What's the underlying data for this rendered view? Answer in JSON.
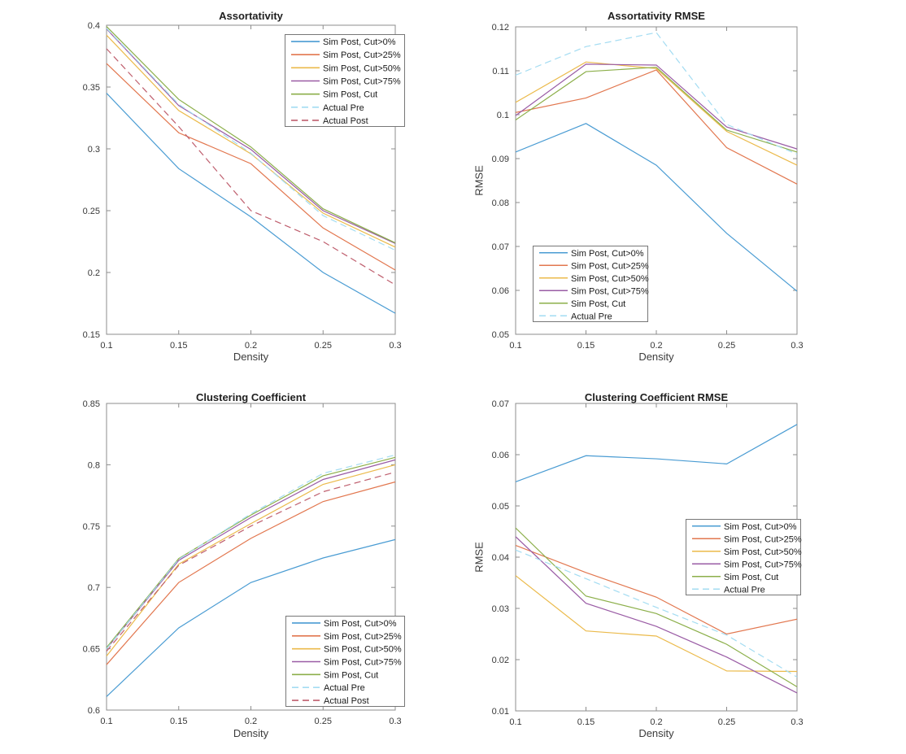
{
  "page": {
    "background": "#ffffff"
  },
  "palette": {
    "blue": "#4A9CD3",
    "orange": "#E2774F",
    "yellow": "#EBBA4B",
    "purple": "#9A5CA5",
    "green": "#8CAF4A",
    "lightblue": "#A3DCF2",
    "maroon": "#BF5F6E",
    "axis": "#8C8C8C",
    "tick_text": "#383838",
    "legend_border": "#777777"
  },
  "chart_data": [
    {
      "type": "line",
      "name": "assortativity",
      "title": "Assortativity",
      "xlabel": "Density",
      "ylabel": "",
      "x": [
        0.1,
        0.15,
        0.2,
        0.25,
        0.3
      ],
      "xlim": [
        0.1,
        0.3
      ],
      "ylim": [
        0.15,
        0.4
      ],
      "grid": false,
      "xticks": {
        "values": [
          0.1,
          0.15,
          0.2,
          0.25,
          0.3
        ],
        "labels": [
          "0.1",
          "0.15",
          "0.2",
          "0.25",
          "0.3"
        ]
      },
      "yticks": {
        "values": [
          0.15,
          0.2,
          0.25,
          0.3,
          0.35,
          0.4
        ],
        "labels": [
          "0.15",
          "0.2",
          "0.25",
          "0.3",
          "0.35",
          "0.4"
        ]
      },
      "legend": {
        "location": "northeast-inside",
        "position": [
          350,
          42
        ],
        "size": [
          147,
          113
        ]
      },
      "series": [
        {
          "key": "cut0",
          "name": "Sim Post, Cut>0%",
          "color_key": "blue",
          "dash": false,
          "values": [
            0.345,
            0.284,
            0.245,
            0.2,
            0.167
          ]
        },
        {
          "key": "cut25",
          "name": "Sim Post, Cut>25%",
          "color_key": "orange",
          "dash": false,
          "values": [
            0.369,
            0.313,
            0.288,
            0.236,
            0.202
          ]
        },
        {
          "key": "cut50",
          "name": "Sim Post, Cut>50%",
          "color_key": "yellow",
          "dash": false,
          "values": [
            0.392,
            0.331,
            0.296,
            0.248,
            0.2205
          ]
        },
        {
          "key": "cut75",
          "name": "Sim Post, Cut>75%",
          "color_key": "purple",
          "dash": false,
          "values": [
            0.397,
            0.335,
            0.2995,
            0.25,
            0.2235
          ]
        },
        {
          "key": "cut",
          "name": "Sim Post, Cut",
          "color_key": "green",
          "dash": false,
          "values": [
            0.399,
            0.34,
            0.3015,
            0.2515,
            0.224
          ]
        },
        {
          "key": "pre",
          "name": "Actual Pre",
          "color_key": "lightblue",
          "dash": true,
          "values": [
            0.3975,
            0.336,
            0.2965,
            0.246,
            0.218
          ]
        },
        {
          "key": "post",
          "name": "Actual Post",
          "color_key": "maroon",
          "dash": true,
          "values": [
            0.381,
            0.318,
            0.25,
            0.225,
            0.19
          ]
        }
      ]
    },
    {
      "type": "line",
      "name": "assortativity-rmse",
      "title": "Assortativity RMSE",
      "xlabel": "Density",
      "ylabel": "RMSE",
      "x": [
        0.1,
        0.15,
        0.2,
        0.25,
        0.3
      ],
      "xlim": [
        0.1,
        0.3
      ],
      "ylim": [
        0.05,
        0.12
      ],
      "grid": false,
      "xticks": {
        "values": [
          0.1,
          0.15,
          0.2,
          0.25,
          0.3
        ],
        "labels": [
          "0.1",
          "0.15",
          "0.2",
          "0.25",
          "0.3"
        ]
      },
      "yticks": {
        "values": [
          0.05,
          0.06,
          0.07,
          0.08,
          0.09,
          0.1,
          0.11,
          0.12
        ],
        "labels": [
          "0.05",
          "0.06",
          "0.07",
          "0.08",
          "0.09",
          "0.1",
          "0.11",
          "0.12"
        ]
      },
      "legend": {
        "location": "southwest-inside",
        "position": [
          98,
          302
        ],
        "size": [
          141,
          93
        ]
      },
      "series": [
        {
          "key": "cut0",
          "name": "Sim Post, Cut>0%",
          "color_key": "blue",
          "dash": false,
          "values": [
            0.0915,
            0.098,
            0.0885,
            0.073,
            0.0598
          ]
        },
        {
          "key": "cut25",
          "name": "Sim Post, Cut>25%",
          "color_key": "orange",
          "dash": false,
          "values": [
            0.1005,
            0.1038,
            0.1102,
            0.0925,
            0.0842
          ]
        },
        {
          "key": "cut50",
          "name": "Sim Post, Cut>50%",
          "color_key": "yellow",
          "dash": false,
          "values": [
            0.1028,
            0.112,
            0.1105,
            0.0962,
            0.0885
          ]
        },
        {
          "key": "cut75",
          "name": "Sim Post, Cut>75%",
          "color_key": "purple",
          "dash": false,
          "values": [
            0.0998,
            0.1115,
            0.1113,
            0.0972,
            0.0922
          ]
        },
        {
          "key": "cut",
          "name": "Sim Post, Cut",
          "color_key": "green",
          "dash": false,
          "values": [
            0.0988,
            0.1098,
            0.1108,
            0.0965,
            0.0915
          ]
        },
        {
          "key": "pre",
          "name": "Actual Pre",
          "color_key": "lightblue",
          "dash": true,
          "values": [
            0.109,
            0.1155,
            0.1187,
            0.0978,
            0.091
          ]
        }
      ]
    },
    {
      "type": "line",
      "name": "clustering-coefficient",
      "title": "Clustering Coefficient",
      "xlabel": "Density",
      "ylabel": "",
      "x": [
        0.1,
        0.15,
        0.2,
        0.25,
        0.3
      ],
      "xlim": [
        0.1,
        0.3
      ],
      "ylim": [
        0.6,
        0.85
      ],
      "grid": false,
      "xticks": {
        "values": [
          0.1,
          0.15,
          0.2,
          0.25,
          0.3
        ],
        "labels": [
          "0.1",
          "0.15",
          "0.2",
          "0.25",
          "0.3"
        ]
      },
      "yticks": {
        "values": [
          0.6,
          0.65,
          0.7,
          0.75,
          0.8,
          0.85
        ],
        "labels": [
          "0.6",
          "0.65",
          "0.7",
          "0.75",
          "0.8",
          "0.85"
        ]
      },
      "legend": {
        "location": "southeast-inside",
        "position": [
          351,
          294
        ],
        "size": [
          146,
          111
        ]
      },
      "series": [
        {
          "key": "cut0",
          "name": "Sim Post, Cut>0%",
          "color_key": "blue",
          "dash": false,
          "values": [
            0.611,
            0.667,
            0.704,
            0.724,
            0.739
          ]
        },
        {
          "key": "cut25",
          "name": "Sim Post, Cut>25%",
          "color_key": "orange",
          "dash": false,
          "values": [
            0.637,
            0.704,
            0.74,
            0.77,
            0.786
          ]
        },
        {
          "key": "cut50",
          "name": "Sim Post, Cut>50%",
          "color_key": "yellow",
          "dash": false,
          "values": [
            0.644,
            0.719,
            0.752,
            0.784,
            0.8
          ]
        },
        {
          "key": "cut75",
          "name": "Sim Post, Cut>75%",
          "color_key": "purple",
          "dash": false,
          "values": [
            0.65,
            0.722,
            0.757,
            0.788,
            0.804
          ]
        },
        {
          "key": "cut",
          "name": "Sim Post, Cut",
          "color_key": "green",
          "dash": false,
          "values": [
            0.651,
            0.7235,
            0.759,
            0.791,
            0.806
          ]
        },
        {
          "key": "pre",
          "name": "Actual Pre",
          "color_key": "lightblue",
          "dash": true,
          "values": [
            0.65,
            0.723,
            0.76,
            0.793,
            0.808
          ]
        },
        {
          "key": "post",
          "name": "Actual Post",
          "color_key": "maroon",
          "dash": true,
          "values": [
            0.648,
            0.718,
            0.75,
            0.778,
            0.794
          ]
        }
      ]
    },
    {
      "type": "line",
      "name": "clustering-coefficient-rmse",
      "title": "Clustering Coefficient RMSE",
      "xlabel": "Density",
      "ylabel": "RMSE",
      "x": [
        0.1,
        0.15,
        0.2,
        0.25,
        0.3
      ],
      "xlim": [
        0.1,
        0.3
      ],
      "ylim": [
        0.01,
        0.07
      ],
      "grid": false,
      "xticks": {
        "values": [
          0.1,
          0.15,
          0.2,
          0.25,
          0.3
        ],
        "labels": [
          "0.1",
          "0.15",
          "0.2",
          "0.25",
          "0.3"
        ]
      },
      "yticks": {
        "values": [
          0.01,
          0.02,
          0.03,
          0.04,
          0.05,
          0.06,
          0.07
        ],
        "labels": [
          "0.01",
          "0.02",
          "0.03",
          "0.04",
          "0.05",
          "0.06",
          "0.07"
        ]
      },
      "legend": {
        "location": "east-inside",
        "position": [
          286,
          175
        ],
        "size": [
          141,
          93
        ]
      },
      "series": [
        {
          "key": "cut0",
          "name": "Sim Post, Cut>0%",
          "color_key": "blue",
          "dash": false,
          "values": [
            0.0547,
            0.0598,
            0.0592,
            0.0582,
            0.0659
          ]
        },
        {
          "key": "cut25",
          "name": "Sim Post, Cut>25%",
          "color_key": "orange",
          "dash": false,
          "values": [
            0.0423,
            0.037,
            0.0322,
            0.025,
            0.0279
          ]
        },
        {
          "key": "cut50",
          "name": "Sim Post, Cut>50%",
          "color_key": "yellow",
          "dash": false,
          "values": [
            0.0364,
            0.0256,
            0.0246,
            0.0178,
            0.0177
          ]
        },
        {
          "key": "cut75",
          "name": "Sim Post, Cut>75%",
          "color_key": "purple",
          "dash": false,
          "values": [
            0.044,
            0.031,
            0.0265,
            0.0205,
            0.0135
          ]
        },
        {
          "key": "cut",
          "name": "Sim Post, Cut",
          "color_key": "green",
          "dash": false,
          "values": [
            0.0457,
            0.0324,
            0.029,
            0.023,
            0.0147
          ]
        },
        {
          "key": "pre",
          "name": "Actual Pre",
          "color_key": "lightblue",
          "dash": true,
          "values": [
            0.0414,
            0.0358,
            0.0302,
            0.0248,
            0.0166
          ]
        }
      ]
    }
  ]
}
